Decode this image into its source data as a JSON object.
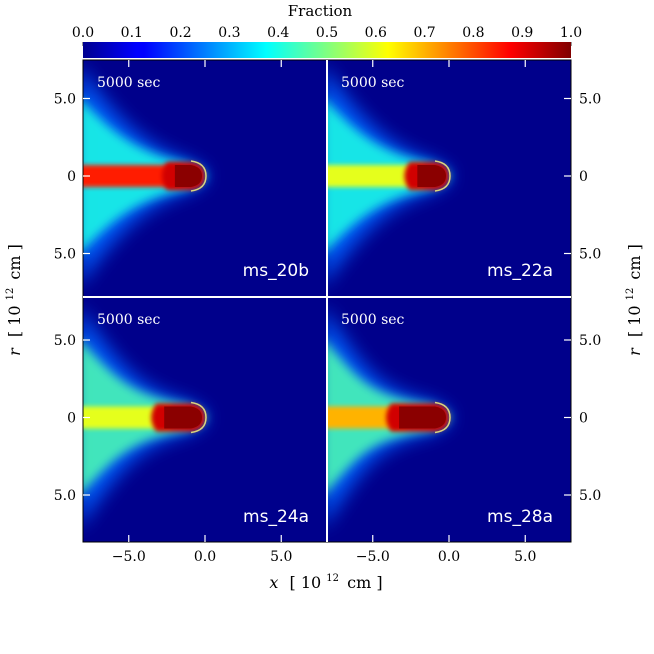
{
  "chart_data": {
    "type": "heatmap",
    "colorbar": {
      "title": "Fraction",
      "range": [
        0.0,
        1.0
      ],
      "ticks": [
        "0.0",
        "0.1",
        "0.2",
        "0.3",
        "0.4",
        "0.5",
        "0.6",
        "0.7",
        "0.8",
        "0.9",
        "1.0"
      ],
      "colormap": "jet",
      "position": "top"
    },
    "xlabel": {
      "var": "x",
      "rest": "[ 10",
      "exp": "12",
      "unit": "cm ]"
    },
    "ylabel": {
      "var": "r",
      "rest": "[ 10",
      "exp": "12",
      "unit": "cm ]"
    },
    "xlim": [
      -8.0,
      8.0
    ],
    "x_ticks": [
      "−5.0",
      "0.0",
      "5.0"
    ],
    "y_ticks": [
      "5.0",
      "0",
      "5.0"
    ],
    "layout": "2x2",
    "panels": [
      {
        "model": "ms_20b",
        "time": "5000 sec",
        "core_x": [
          -2.5,
          0.0
        ],
        "jet_fraction": 0.85,
        "wing_fraction": 0.4
      },
      {
        "model": "ms_22a",
        "time": "5000 sec",
        "core_x": [
          -2.6,
          0.0
        ],
        "jet_fraction": 0.6,
        "wing_fraction": 0.4
      },
      {
        "model": "ms_24a",
        "time": "5000 sec",
        "core_x": [
          -3.2,
          0.0
        ],
        "jet_fraction": 0.6,
        "wing_fraction": 0.45
      },
      {
        "model": "ms_28a",
        "time": "5000 sec",
        "core_x": [
          -3.8,
          0.0
        ],
        "jet_fraction": 0.7,
        "wing_fraction": 0.45
      }
    ],
    "colors": {
      "background": "#00008b",
      "core": "#8b0000",
      "separator": "#ffffff"
    }
  }
}
